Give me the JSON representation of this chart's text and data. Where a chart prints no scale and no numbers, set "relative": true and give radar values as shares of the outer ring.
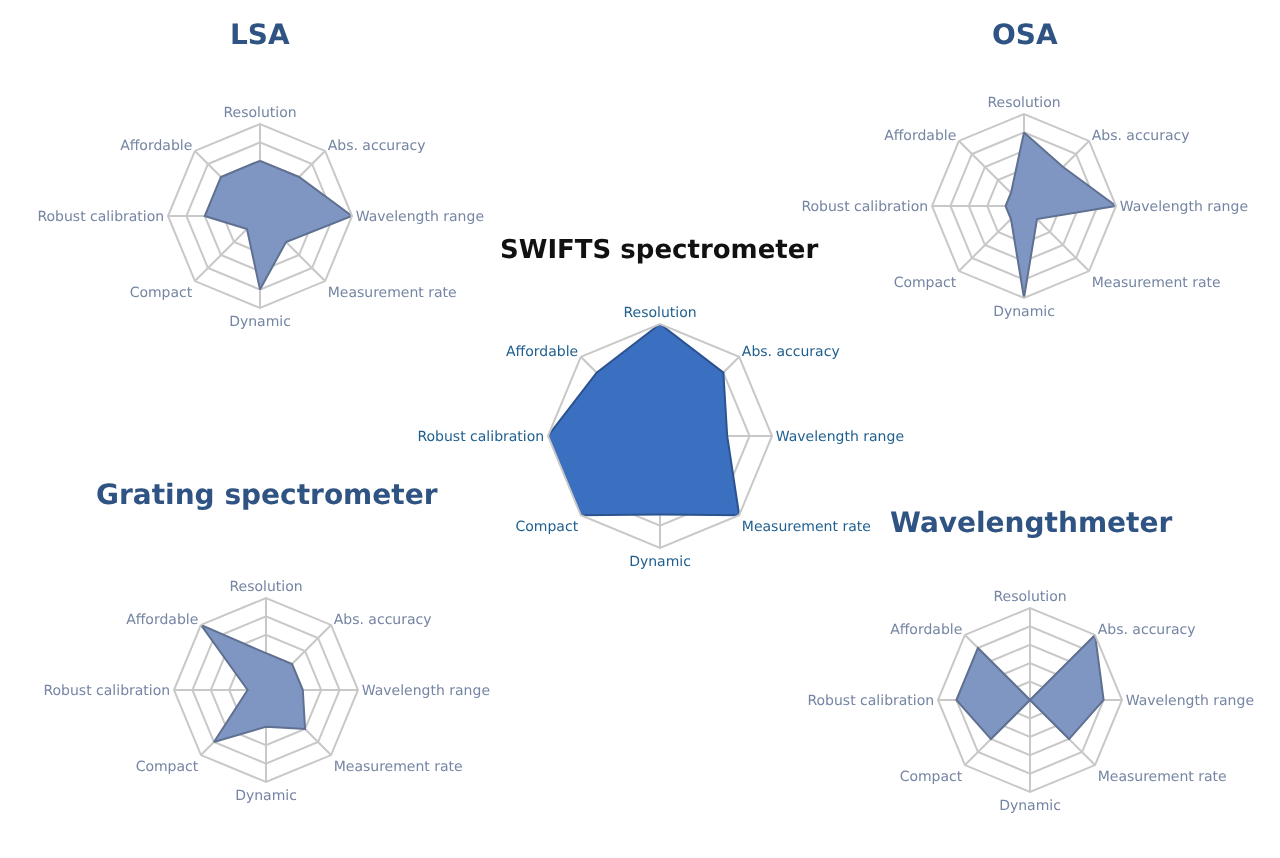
{
  "chart_data": [
    {
      "type": "radar",
      "title": "LSA",
      "relative": true,
      "grid": true,
      "categories": [
        "Resolution",
        "Abs. accuracy",
        "Wavelength range",
        "Measurement rate",
        "Dynamic",
        "Compact",
        "Robust calibration",
        "Affordable"
      ],
      "series": [
        {
          "color": "#7f96c2",
          "values": [
            0.6,
            0.6,
            1.0,
            0.4,
            0.8,
            0.2,
            0.6,
            0.6
          ]
        }
      ]
    },
    {
      "type": "radar",
      "title": "OSA",
      "relative": true,
      "grid": true,
      "categories": [
        "Resolution",
        "Abs. accuracy",
        "Wavelength range",
        "Measurement rate",
        "Dynamic",
        "Compact",
        "Robust calibration",
        "Affordable"
      ],
      "series": [
        {
          "color": "#7f96c2",
          "values": [
            0.8,
            0.6,
            1.0,
            0.2,
            1.0,
            0.2,
            0.2,
            0.2
          ]
        }
      ]
    },
    {
      "type": "radar",
      "title": "SWIFTS spectrometer",
      "relative": true,
      "grid": true,
      "categories": [
        "Resolution",
        "Abs. accuracy",
        "Wavelength range",
        "Measurement rate",
        "Dynamic",
        "Compact",
        "Robust calibration",
        "Affordable"
      ],
      "series": [
        {
          "color": "#3b6fbf",
          "values": [
            1.0,
            0.8,
            0.6,
            1.0,
            0.7,
            1.0,
            1.0,
            0.8
          ]
        }
      ]
    },
    {
      "type": "radar",
      "title": "Grating spectrometer",
      "relative": true,
      "grid": true,
      "categories": [
        "Resolution",
        "Abs. accuracy",
        "Wavelength range",
        "Measurement rate",
        "Dynamic",
        "Compact",
        "Robust calibration",
        "Affordable"
      ],
      "series": [
        {
          "color": "#7f96c2",
          "values": [
            0.4,
            0.4,
            0.4,
            0.6,
            0.4,
            0.8,
            0.2,
            1.0
          ]
        }
      ]
    },
    {
      "type": "radar",
      "title": "Wavelengthmeter",
      "relative": true,
      "grid": true,
      "categories": [
        "Resolution",
        "Abs. accuracy",
        "Wavelength range",
        "Measurement rate",
        "Dynamic",
        "Compact",
        "Robust calibration",
        "Affordable"
      ],
      "series": [
        {
          "color": "#7f96c2",
          "values": [
            0.0,
            1.0,
            0.8,
            0.6,
            0.0,
            0.6,
            0.8,
            0.8
          ]
        }
      ]
    }
  ]
}
